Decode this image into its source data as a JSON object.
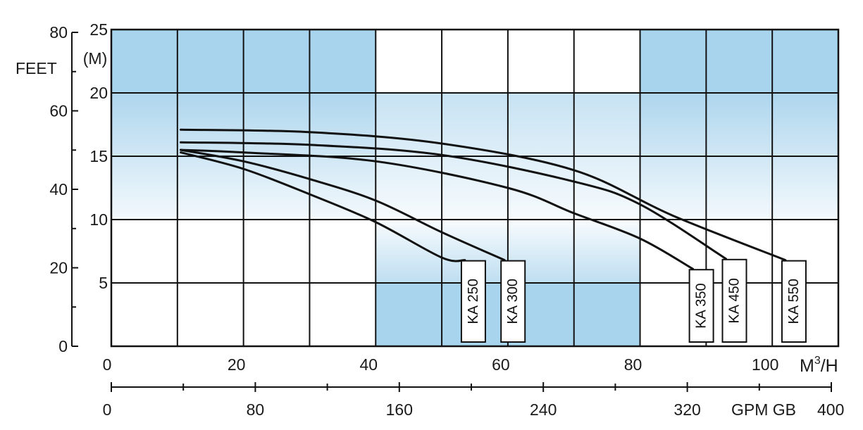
{
  "chart_data": {
    "type": "line",
    "title": "",
    "x_axis": {
      "unit_label": "M³/H",
      "unit_base": "M",
      "unit_sup": "3",
      "unit_tail": "/H",
      "range": [
        0,
        110
      ],
      "major_ticks": [
        0,
        20,
        40,
        60,
        80,
        100
      ],
      "tick_labels": [
        "0",
        "20",
        "40",
        "60",
        "80",
        "100"
      ],
      "grid_step": 10
    },
    "x_axis_secondary": {
      "unit_label": "GPM GB",
      "range": [
        0,
        400
      ],
      "tick_labels": [
        "0",
        "80",
        "160",
        "240",
        "320",
        "400"
      ],
      "tick_values": [
        0,
        80,
        160,
        240,
        320,
        400
      ],
      "minor_tick_values": [
        40,
        120,
        200,
        280,
        360
      ]
    },
    "y_axis": {
      "unit_label": "(M)",
      "range": [
        0,
        25
      ],
      "major_ticks": [
        5,
        10,
        15,
        20,
        25
      ],
      "tick_labels": [
        "5",
        "10",
        "15",
        "20",
        "25"
      ],
      "grid_step": 5
    },
    "y_axis_secondary": {
      "unit_label": "FEET",
      "range": [
        0,
        80
      ],
      "tick_labels": [
        "0",
        "20",
        "40",
        "60",
        "80"
      ],
      "tick_values": [
        0,
        20,
        40,
        60,
        80
      ]
    },
    "grid": true,
    "series": [
      {
        "name": "KA 250",
        "points": [
          [
            10.5,
            15.3
          ],
          [
            20,
            14.0
          ],
          [
            30,
            12.0
          ],
          [
            40,
            9.8
          ],
          [
            50,
            7.0
          ],
          [
            53.5,
            6.8
          ]
        ]
      },
      {
        "name": "KA 300",
        "points": [
          [
            10.5,
            15.5
          ],
          [
            20,
            14.6
          ],
          [
            30,
            13.2
          ],
          [
            40,
            11.5
          ],
          [
            50,
            9.0
          ],
          [
            59.5,
            6.8
          ]
        ]
      },
      {
        "name": "KA 350",
        "points": [
          [
            10.5,
            15.5
          ],
          [
            20,
            15.3
          ],
          [
            40,
            14.6
          ],
          [
            60,
            12.5
          ],
          [
            70,
            10.5
          ],
          [
            80,
            8.5
          ],
          [
            88,
            6.1
          ]
        ]
      },
      {
        "name": "KA 450",
        "points": [
          [
            10.5,
            16.1
          ],
          [
            30,
            15.9
          ],
          [
            50,
            15.1
          ],
          [
            70,
            13.0
          ],
          [
            80,
            11.2
          ],
          [
            93,
            6.9
          ]
        ]
      },
      {
        "name": "KA 550",
        "points": [
          [
            10.5,
            17.1
          ],
          [
            30,
            16.9
          ],
          [
            50,
            16.0
          ],
          [
            70,
            13.9
          ],
          [
            85,
            10.3
          ],
          [
            102,
            6.8
          ]
        ]
      }
    ]
  }
}
